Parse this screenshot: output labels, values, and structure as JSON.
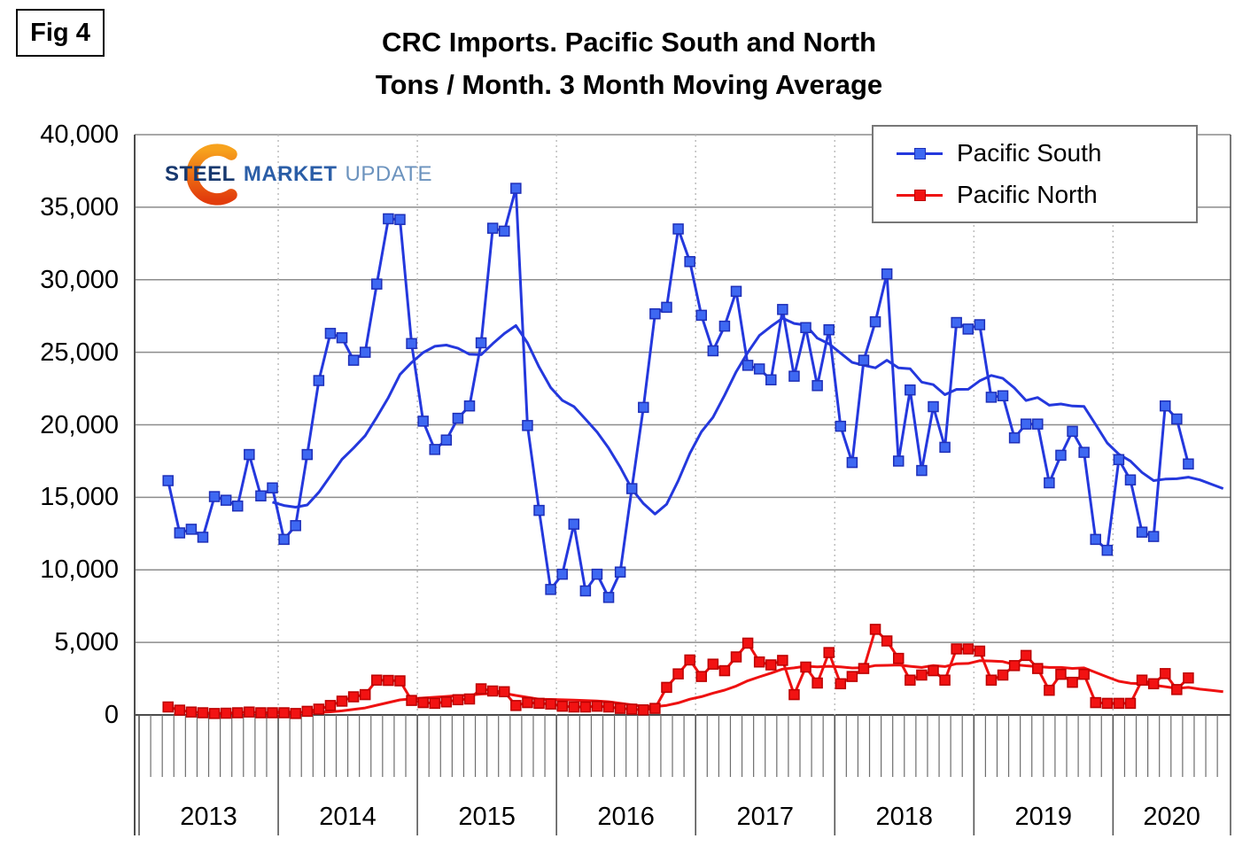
{
  "figure_label": "Fig 4",
  "title_line1": "CRC Imports. Pacific South and North",
  "title_line2": "Tons / Month. 3 Month Moving Average",
  "logo": {
    "word1": "STEEL",
    "word2": "MARKET",
    "word3": "UPDATE"
  },
  "legend": [
    {
      "label": "Pacific South",
      "color": "#2438DD",
      "fill": "#3E68F2"
    },
    {
      "label": "Pacific North",
      "color": "#EE1111",
      "fill": "#F21212"
    }
  ],
  "chart_data": {
    "type": "line",
    "title": "CRC Imports. Pacific South and North",
    "subtitle": "Tons / Month. 3 Month Moving Average",
    "ylabel": "Tons per month",
    "ylim": [
      0,
      40000
    ],
    "grid": true,
    "legend_position": "top-right",
    "y_ticks": [
      "40,000",
      "35,000",
      "30,000",
      "25,000",
      "20,000",
      "15,000",
      "10,000",
      "5,000",
      "0"
    ],
    "x_year_labels": [
      "2013",
      "2014",
      "2015",
      "2016",
      "2017",
      "2018",
      "2019",
      "2020"
    ],
    "start_month": "2013-03",
    "months_per_year": 12,
    "moving_average_window": 12,
    "series": [
      {
        "name": "Pacific South",
        "color": "#2438DD",
        "marker_fill": "#3E68F2",
        "marker_stroke": "#1E2FB8",
        "start_index": 2,
        "values": [
          16150,
          12550,
          12800,
          12250,
          15050,
          14800,
          14400,
          17950,
          15100,
          15650,
          12100,
          13050,
          17950,
          23050,
          26300,
          26000,
          24450,
          25000,
          29700,
          34200,
          34150,
          25600,
          20250,
          18300,
          18950,
          20450,
          21300,
          25650,
          33550,
          33350,
          36300,
          19950,
          14100,
          8650,
          9700,
          13150,
          8550,
          9700,
          8100,
          9850,
          15600,
          21200,
          27650,
          28100,
          33500,
          31250,
          27550,
          25100,
          26800,
          29200,
          24100,
          23850,
          23100,
          27950,
          23350,
          26700,
          22700,
          26550,
          19900,
          17400,
          24450,
          27100,
          30400,
          17500,
          22400,
          16850,
          21250,
          18450,
          27050,
          26600,
          26900,
          21900,
          22000,
          19100,
          20050,
          20050,
          16000,
          17900,
          19550,
          18100,
          12100,
          11350,
          17600,
          16200,
          12600,
          12300,
          21300,
          20400,
          17300
        ],
        "ma_extension": [
          16200,
          15900,
          15600
        ]
      },
      {
        "name": "Pacific North",
        "color": "#EE1111",
        "marker_fill": "#F21212",
        "marker_stroke": "#BB0000",
        "start_index": 2,
        "values": [
          550,
          330,
          200,
          150,
          100,
          120,
          150,
          200,
          150,
          150,
          150,
          100,
          250,
          400,
          650,
          950,
          1250,
          1400,
          2400,
          2380,
          2350,
          1000,
          850,
          800,
          900,
          1050,
          1100,
          1800,
          1650,
          1600,
          650,
          850,
          800,
          750,
          600,
          550,
          550,
          600,
          550,
          450,
          400,
          350,
          450,
          1900,
          2830,
          3790,
          2650,
          3500,
          3050,
          4000,
          4950,
          3650,
          3450,
          3760,
          1400,
          3300,
          2200,
          4300,
          2150,
          2650,
          3200,
          5900,
          5100,
          3900,
          2400,
          2750,
          3050,
          2400,
          4550,
          4550,
          4400,
          2400,
          2750,
          3400,
          4100,
          3200,
          1700,
          2800,
          2250,
          2800,
          850,
          800,
          800,
          800,
          2400,
          2150,
          2850,
          1750,
          2550
        ],
        "ma_extension": [
          1780,
          1700,
          1600
        ]
      }
    ]
  }
}
